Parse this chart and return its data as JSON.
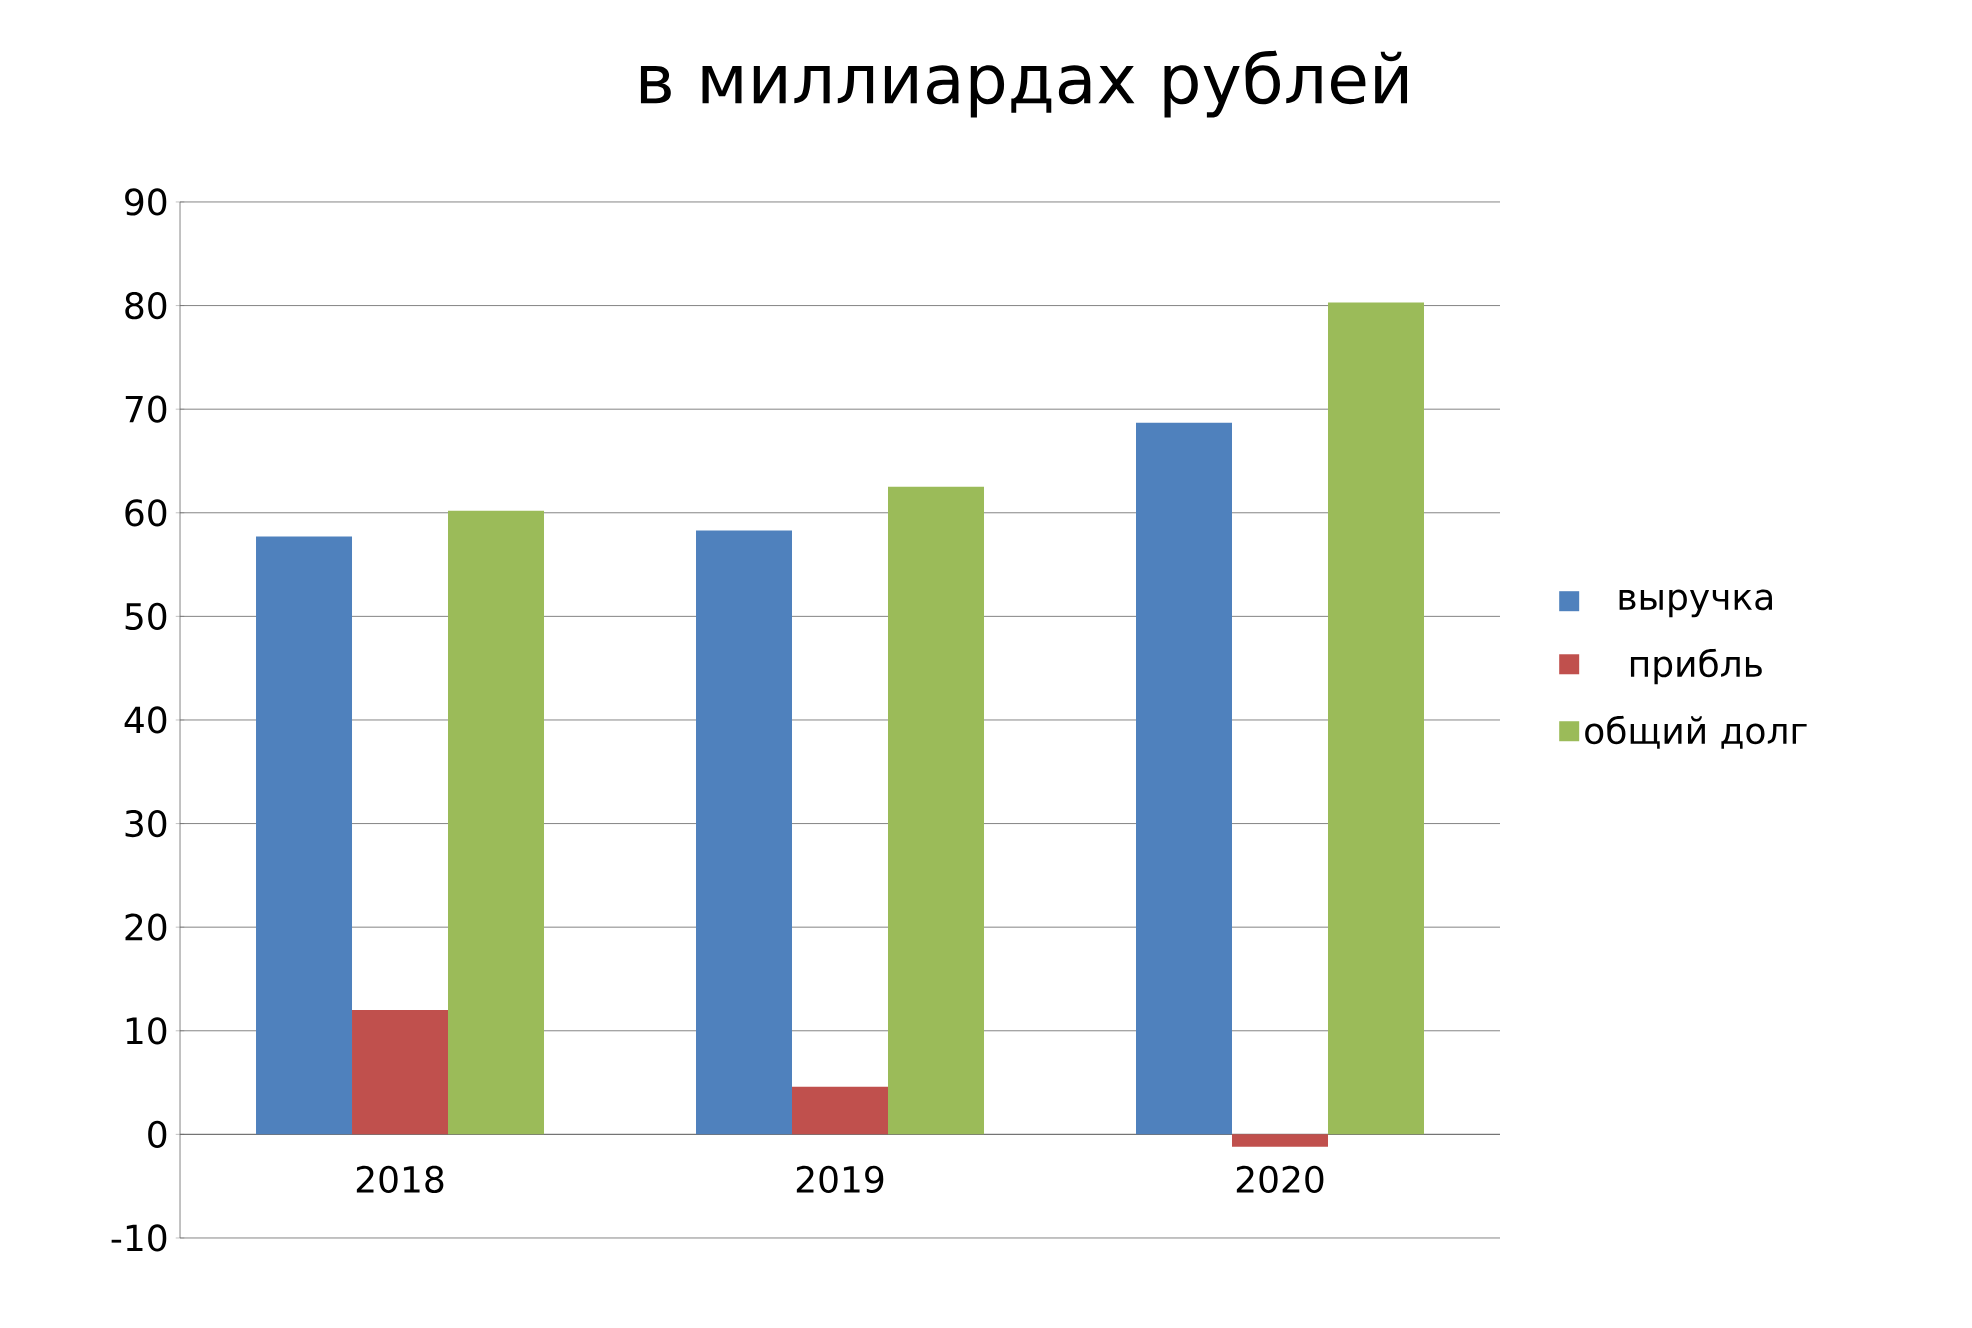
{
  "chart_data": {
    "type": "bar",
    "title": "в миллиардах рублей",
    "categories": [
      "2018",
      "2019",
      "2020"
    ],
    "series": [
      {
        "name": "выручка",
        "color": "#4f81bd",
        "values": [
          57.7,
          58.3,
          68.7
        ]
      },
      {
        "name": "прибль",
        "color": "#c0504d",
        "values": [
          12,
          4.6,
          -1.2
        ]
      },
      {
        "name": "общий долг",
        "color": "#9bbb59",
        "values": [
          60.2,
          62.5,
          80.3
        ]
      }
    ],
    "ylim": [
      -10,
      90
    ],
    "yticks": [
      -10,
      0,
      10,
      20,
      30,
      40,
      50,
      60,
      70,
      80,
      90
    ],
    "grid": "y",
    "legend": "right"
  }
}
